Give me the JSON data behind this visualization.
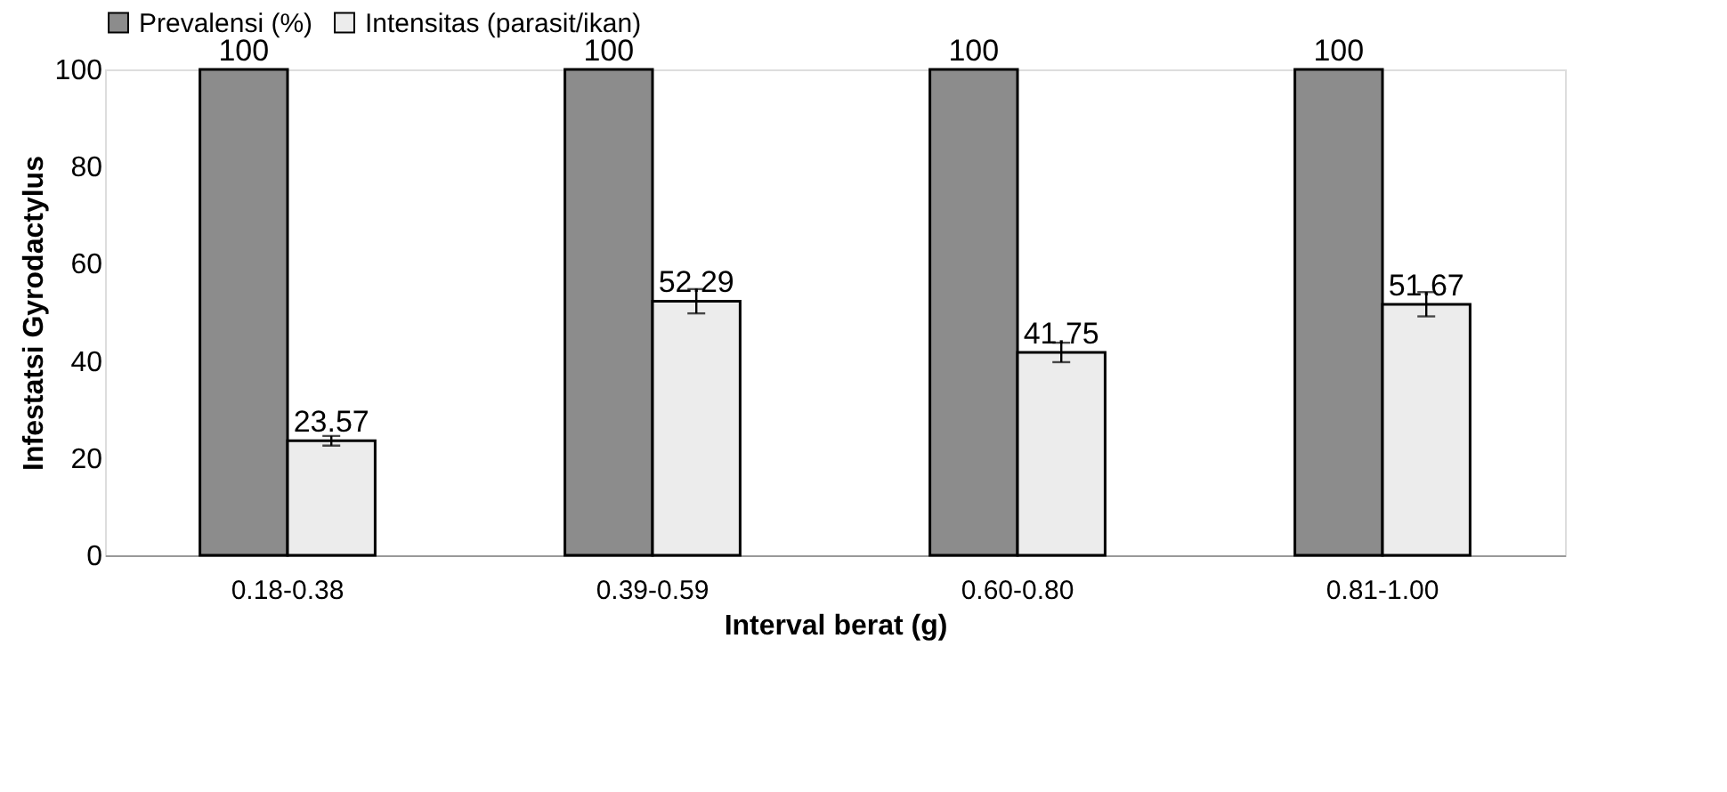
{
  "chart_data": {
    "type": "bar",
    "xlabel": "Interval berat (g)",
    "ylabel": "Infestatsi Gyrodactylus",
    "categories": [
      "0.18-0.38",
      "0.39-0.59",
      "0.60-0.80",
      "0.81-1.00"
    ],
    "series": [
      {
        "name": "Prevalensi (%)",
        "color": "#8c8c8c",
        "values": [
          100,
          100,
          100,
          100
        ]
      },
      {
        "name": "Intensitas (parasit/ikan)",
        "color": "#ececec",
        "values": [
          23.57,
          52.29,
          41.75,
          51.67
        ],
        "errors": [
          1,
          2.5,
          2,
          2.5
        ]
      }
    ],
    "ylim": [
      0,
      100
    ],
    "yticks": [
      0,
      20,
      40,
      60,
      80,
      100
    ],
    "grid": false,
    "legend": "top",
    "data_labels": true
  }
}
